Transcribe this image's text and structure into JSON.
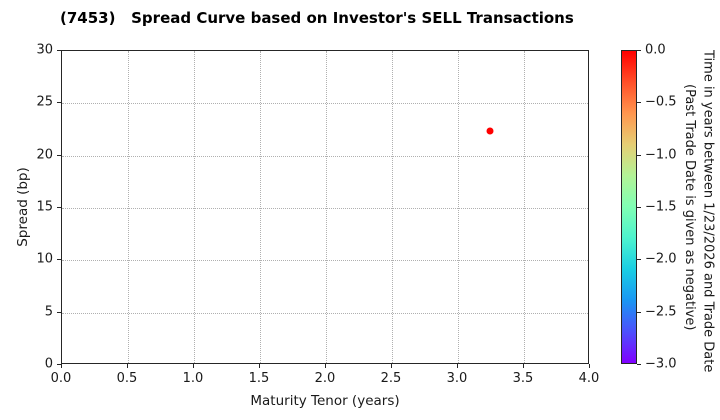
{
  "chart_data": {
    "type": "scatter",
    "title": "(7453)   Spread Curve based on Investor's SELL Transactions",
    "xlabel": "Maturity Tenor (years)",
    "ylabel": "Spread (bp)",
    "xlim": [
      0.0,
      4.0
    ],
    "ylim": [
      0,
      30
    ],
    "xticks": [
      0.0,
      0.5,
      1.0,
      1.5,
      2.0,
      2.5,
      3.0,
      3.5,
      4.0
    ],
    "xtick_labels": [
      "0.0",
      "0.5",
      "1.0",
      "1.5",
      "2.0",
      "2.5",
      "3.0",
      "3.5",
      "4.0"
    ],
    "yticks": [
      0,
      5,
      10,
      15,
      20,
      25,
      30
    ],
    "ytick_labels": [
      "0",
      "5",
      "10",
      "15",
      "20",
      "25",
      "30"
    ],
    "grid": true,
    "grid_style": "dotted",
    "points": [
      {
        "x": 3.25,
        "y": 22.3,
        "color_value": 0.0,
        "color": "#ff0000"
      }
    ],
    "colorbar": {
      "label_line1": "Time in years between 1/23/2026 and Trade Date",
      "label_line2": "(Past Trade Date is given as negative)",
      "range_top": 0.0,
      "range_bottom": -3.0,
      "ticks": [
        0.0,
        -0.5,
        -1.0,
        -1.5,
        -2.0,
        -2.5,
        -3.0
      ],
      "tick_labels": [
        "0.0",
        "−0.5",
        "−1.0",
        "−1.5",
        "−2.0",
        "−2.5",
        "−3.0"
      ],
      "colormap": "rainbow_reversed",
      "gradient_top_to_bottom": [
        "#ff0000",
        "#ff4f28",
        "#ff964f",
        "#e6ce74",
        "#b3f396",
        "#80ffb4",
        "#4df3ce",
        "#1acee3",
        "#1a96f3",
        "#4d4ffc",
        "#8000ff"
      ]
    },
    "frame_color": "#262626",
    "grid_color": "#b0b0b0",
    "background": "#ffffff"
  }
}
